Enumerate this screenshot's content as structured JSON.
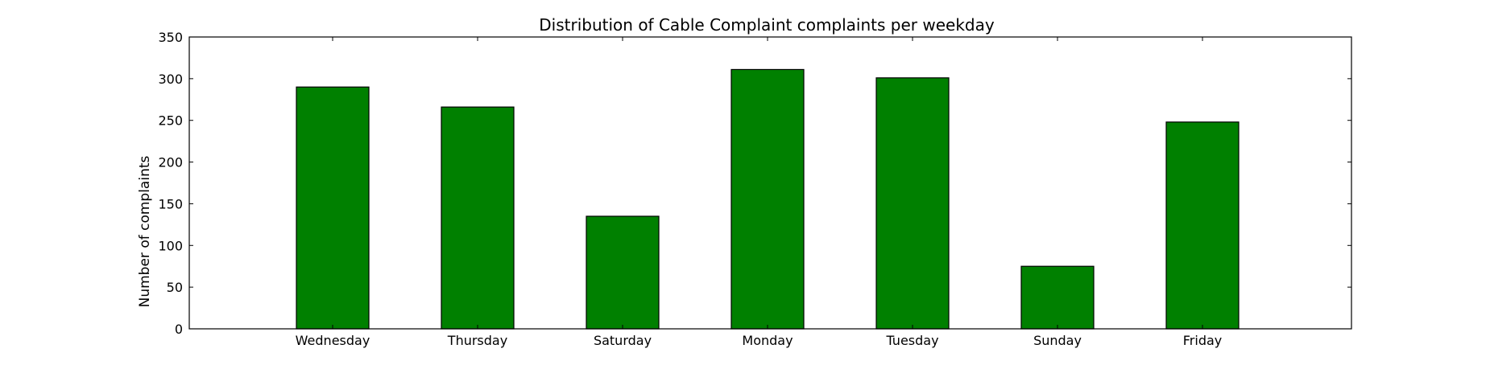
{
  "chart_data": {
    "type": "bar",
    "title": "Distribution of  Cable Complaint complaints per weekday",
    "xlabel": "",
    "ylabel": "Number of complaints",
    "categories": [
      "Wednesday",
      "Thursday",
      "Saturday",
      "Monday",
      "Tuesday",
      "Sunday",
      "Friday"
    ],
    "values": [
      290,
      266,
      135,
      311,
      301,
      75,
      248
    ],
    "ylim": [
      0,
      350
    ],
    "yticks": [
      0,
      50,
      100,
      150,
      200,
      250,
      300,
      350
    ],
    "grid": false,
    "legend": "none",
    "bar_color": "#008000",
    "edge_color": "#000000"
  }
}
